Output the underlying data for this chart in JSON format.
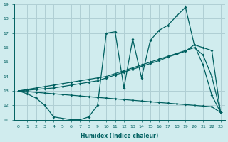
{
  "bg_color": "#d0ecee",
  "grid_color": "#b0cfd4",
  "line_color": "#006060",
  "xlabel": "Humidex (Indice chaleur)",
  "xlim": [
    -0.5,
    23.5
  ],
  "ylim": [
    11,
    19
  ],
  "xtick_vals": [
    0,
    1,
    2,
    3,
    4,
    5,
    6,
    7,
    8,
    9,
    10,
    11,
    12,
    13,
    14,
    15,
    16,
    17,
    18,
    19,
    20,
    21,
    22,
    23
  ],
  "ytick_vals": [
    11,
    12,
    13,
    14,
    15,
    16,
    17,
    18,
    19
  ],
  "line1_x": [
    0,
    1,
    2,
    3,
    4,
    5,
    6,
    7,
    8,
    9,
    10,
    11,
    12,
    13,
    14,
    15,
    16,
    17,
    18,
    19,
    20,
    21,
    22,
    23
  ],
  "line1_y": [
    13.0,
    12.8,
    12.5,
    12.0,
    11.2,
    11.1,
    11.0,
    11.0,
    11.2,
    12.0,
    17.0,
    17.1,
    13.2,
    16.6,
    13.9,
    16.5,
    17.2,
    17.55,
    18.2,
    18.8,
    16.2,
    14.8,
    12.7,
    11.5
  ],
  "line2_x": [
    0,
    1,
    2,
    3,
    4,
    5,
    6,
    7,
    8,
    9,
    10,
    11,
    12,
    13,
    14,
    15,
    16,
    17,
    18,
    19,
    20,
    21,
    22,
    23
  ],
  "line2_y": [
    13.0,
    13.05,
    13.1,
    13.15,
    13.2,
    13.3,
    13.4,
    13.5,
    13.6,
    13.7,
    13.9,
    14.1,
    14.3,
    14.5,
    14.7,
    14.9,
    15.1,
    15.35,
    15.55,
    15.75,
    16.2,
    16.0,
    15.8,
    11.5
  ],
  "line3_x": [
    0,
    1,
    2,
    3,
    4,
    5,
    6,
    7,
    8,
    9,
    10,
    11,
    12,
    13,
    14,
    15,
    16,
    17,
    18,
    19,
    20,
    21,
    22,
    23
  ],
  "line3_y": [
    13.0,
    12.95,
    12.9,
    12.85,
    12.8,
    12.75,
    12.7,
    12.65,
    12.6,
    12.55,
    12.5,
    12.45,
    12.4,
    12.35,
    12.3,
    12.25,
    12.2,
    12.15,
    12.1,
    12.05,
    12.0,
    11.95,
    11.9,
    11.5
  ],
  "line4_x": [
    0,
    1,
    2,
    3,
    4,
    5,
    6,
    7,
    8,
    9,
    10,
    11,
    12,
    13,
    14,
    15,
    16,
    17,
    18,
    19,
    20,
    21,
    22,
    23
  ],
  "line4_y": [
    13.0,
    13.1,
    13.2,
    13.3,
    13.4,
    13.5,
    13.6,
    13.7,
    13.8,
    13.9,
    14.0,
    14.2,
    14.4,
    14.6,
    14.8,
    15.0,
    15.2,
    15.4,
    15.6,
    15.8,
    16.0,
    15.5,
    14.0,
    11.5
  ]
}
